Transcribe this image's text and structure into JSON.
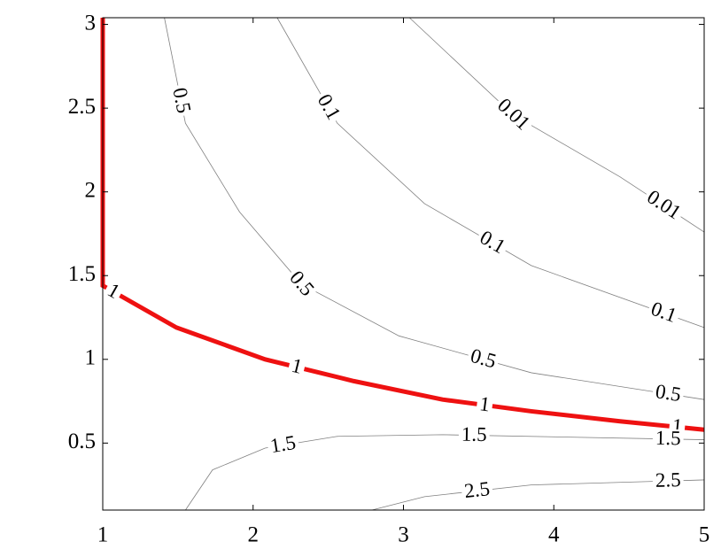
{
  "chart_data": {
    "type": "contour",
    "xlim": [
      1,
      5
    ],
    "ylim": [
      0.1,
      3.04
    ],
    "xticks": [
      1,
      2,
      3,
      4,
      5
    ],
    "yticks": [
      0.5,
      1,
      1.5,
      2,
      2.5,
      3
    ],
    "series": [
      {
        "level": 0.01,
        "color": "#808080",
        "x": [
          3.04,
          3.73,
          4.44,
          5
        ],
        "y": [
          3.04,
          2.46,
          2.09,
          1.76
        ],
        "label_at": [
          3.73,
          4.73
        ]
      },
      {
        "level": 0.1,
        "color": "#808080",
        "x": [
          2.16,
          2.56,
          3.14,
          3.85,
          5
        ],
        "y": [
          3.04,
          2.41,
          1.93,
          1.56,
          1.19
        ],
        "label_at": [
          2.5,
          3.59,
          4.73
        ]
      },
      {
        "level": 0.5,
        "color": "#808080",
        "x": [
          1.41,
          1.55,
          1.91,
          2.32,
          2.97,
          3.85,
          5
        ],
        "y": [
          3.04,
          2.41,
          1.88,
          1.45,
          1.14,
          0.92,
          0.76
        ],
        "label_at": [
          1.52,
          2.32,
          3.53,
          4.76
        ]
      },
      {
        "level": 1,
        "color": "#ee1111",
        "x": [
          1,
          1,
          1.49,
          2.08,
          2.67,
          3.26,
          3.85,
          4.44,
          5
        ],
        "y": [
          3.04,
          1.44,
          1.19,
          1.0,
          0.87,
          0.76,
          0.69,
          0.63,
          0.58
        ],
        "label_at": [
          1.07,
          2.29,
          3.54,
          4.82
        ]
      },
      {
        "level": 1.5,
        "color": "#808080",
        "x": [
          1.55,
          1.73,
          2.08,
          2.56,
          3.26,
          5
        ],
        "y": [
          0.1,
          0.34,
          0.47,
          0.54,
          0.55,
          0.52
        ],
        "label_at": [
          2.2,
          3.47,
          4.76
        ]
      },
      {
        "level": 2.5,
        "color": "#808080",
        "x": [
          2.79,
          3.14,
          3.85,
          5
        ],
        "y": [
          0.1,
          0.18,
          0.25,
          0.28
        ],
        "label_at": [
          3.49,
          4.76
        ]
      }
    ]
  }
}
